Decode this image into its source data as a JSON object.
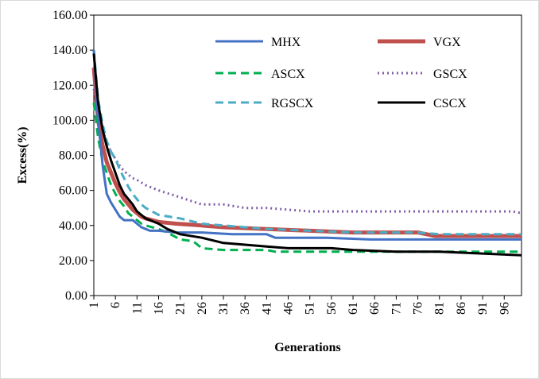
{
  "chart_data": {
    "type": "line",
    "title": "",
    "xlabel": "Generations",
    "ylabel": "Excess(%)",
    "xlim": [
      1,
      100
    ],
    "ylim": [
      0,
      160
    ],
    "y_ticks": [
      "0.00",
      "20.00",
      "40.00",
      "60.00",
      "80.00",
      "100.00",
      "120.00",
      "140.00",
      "160.00"
    ],
    "x_ticks": [
      "1",
      "6",
      "11",
      "16",
      "21",
      "26",
      "31",
      "36",
      "41",
      "46",
      "51",
      "56",
      "61",
      "66",
      "71",
      "76",
      "81",
      "86",
      "91",
      "96"
    ],
    "grid": false,
    "legend_position": "inside-top",
    "series": [
      {
        "name": "MHX",
        "color": "#4472C4",
        "style": "solid",
        "points": [
          [
            1,
            140
          ],
          [
            2,
            100
          ],
          [
            3,
            75
          ],
          [
            4,
            58
          ],
          [
            5,
            53
          ],
          [
            6,
            49
          ],
          [
            7,
            45
          ],
          [
            8,
            43
          ],
          [
            9,
            43
          ],
          [
            10,
            43
          ],
          [
            11,
            41
          ],
          [
            12,
            39
          ],
          [
            13,
            38
          ],
          [
            14,
            37
          ],
          [
            16,
            37
          ],
          [
            20,
            36
          ],
          [
            26,
            36
          ],
          [
            33,
            35
          ],
          [
            41,
            35
          ],
          [
            43,
            33
          ],
          [
            55,
            33
          ],
          [
            65,
            32
          ],
          [
            80,
            32
          ],
          [
            100,
            32
          ]
        ]
      },
      {
        "name": "VGX",
        "color": "#C0504D",
        "style": "solid",
        "points": [
          [
            1,
            130
          ],
          [
            2,
            100
          ],
          [
            3,
            86
          ],
          [
            4,
            76
          ],
          [
            5,
            70
          ],
          [
            6,
            64
          ],
          [
            7,
            59
          ],
          [
            8,
            55
          ],
          [
            9,
            52
          ],
          [
            10,
            49
          ],
          [
            11,
            47
          ],
          [
            12,
            45
          ],
          [
            13,
            44
          ],
          [
            16,
            42
          ],
          [
            20,
            41
          ],
          [
            26,
            40
          ],
          [
            31,
            39
          ],
          [
            41,
            38
          ],
          [
            51,
            37
          ],
          [
            61,
            36
          ],
          [
            76,
            36
          ],
          [
            80,
            34
          ],
          [
            100,
            34
          ]
        ]
      },
      {
        "name": "ASCX",
        "color": "#00B050",
        "style": "dashed",
        "points": [
          [
            1,
            110
          ],
          [
            2,
            90
          ],
          [
            3,
            77
          ],
          [
            4,
            70
          ],
          [
            5,
            63
          ],
          [
            6,
            58
          ],
          [
            7,
            54
          ],
          [
            8,
            51
          ],
          [
            9,
            47
          ],
          [
            10,
            45
          ],
          [
            11,
            43
          ],
          [
            12,
            41
          ],
          [
            13,
            40
          ],
          [
            16,
            38
          ],
          [
            18,
            36
          ],
          [
            21,
            32
          ],
          [
            24,
            31
          ],
          [
            26,
            27
          ],
          [
            31,
            26
          ],
          [
            41,
            26
          ],
          [
            43,
            25
          ],
          [
            60,
            25
          ],
          [
            70,
            25
          ],
          [
            80,
            25
          ],
          [
            100,
            25
          ]
        ]
      },
      {
        "name": "GSCX",
        "color": "#7F5FA8",
        "style": "dotted",
        "points": [
          [
            1,
            118
          ],
          [
            2,
            105
          ],
          [
            3,
            95
          ],
          [
            4,
            87
          ],
          [
            5,
            82
          ],
          [
            6,
            78
          ],
          [
            7,
            74
          ],
          [
            8,
            71
          ],
          [
            9,
            69
          ],
          [
            10,
            67
          ],
          [
            11,
            66
          ],
          [
            13,
            63
          ],
          [
            16,
            60
          ],
          [
            21,
            56
          ],
          [
            26,
            52
          ],
          [
            31,
            52
          ],
          [
            36,
            50
          ],
          [
            41,
            50
          ],
          [
            46,
            49
          ],
          [
            51,
            48
          ],
          [
            61,
            48
          ],
          [
            76,
            48
          ],
          [
            91,
            48
          ],
          [
            98,
            48
          ],
          [
            100,
            47
          ]
        ]
      },
      {
        "name": "RGSCX",
        "color": "#4BACC6",
        "style": "dashed",
        "points": [
          [
            1,
            140
          ],
          [
            2,
            112
          ],
          [
            3,
            98
          ],
          [
            4,
            88
          ],
          [
            5,
            82
          ],
          [
            6,
            78
          ],
          [
            7,
            72
          ],
          [
            8,
            67
          ],
          [
            9,
            62
          ],
          [
            10,
            58
          ],
          [
            11,
            55
          ],
          [
            12,
            52
          ],
          [
            13,
            50
          ],
          [
            16,
            46
          ],
          [
            21,
            44
          ],
          [
            26,
            41
          ],
          [
            31,
            40
          ],
          [
            41,
            38
          ],
          [
            51,
            37
          ],
          [
            61,
            36
          ],
          [
            76,
            36
          ],
          [
            81,
            35
          ],
          [
            100,
            35
          ]
        ]
      },
      {
        "name": "CSCX",
        "color": "#000000",
        "style": "solid",
        "points": [
          [
            1,
            138
          ],
          [
            2,
            110
          ],
          [
            3,
            95
          ],
          [
            4,
            85
          ],
          [
            5,
            77
          ],
          [
            6,
            70
          ],
          [
            7,
            63
          ],
          [
            8,
            58
          ],
          [
            9,
            55
          ],
          [
            10,
            52
          ],
          [
            11,
            48
          ],
          [
            12,
            46
          ],
          [
            13,
            44
          ],
          [
            14,
            43
          ],
          [
            16,
            41
          ],
          [
            18,
            38
          ],
          [
            21,
            35
          ],
          [
            26,
            33
          ],
          [
            31,
            30
          ],
          [
            36,
            29
          ],
          [
            41,
            28
          ],
          [
            46,
            27
          ],
          [
            56,
            27
          ],
          [
            61,
            26
          ],
          [
            71,
            25
          ],
          [
            81,
            25
          ],
          [
            91,
            24
          ],
          [
            100,
            23
          ]
        ]
      }
    ]
  }
}
